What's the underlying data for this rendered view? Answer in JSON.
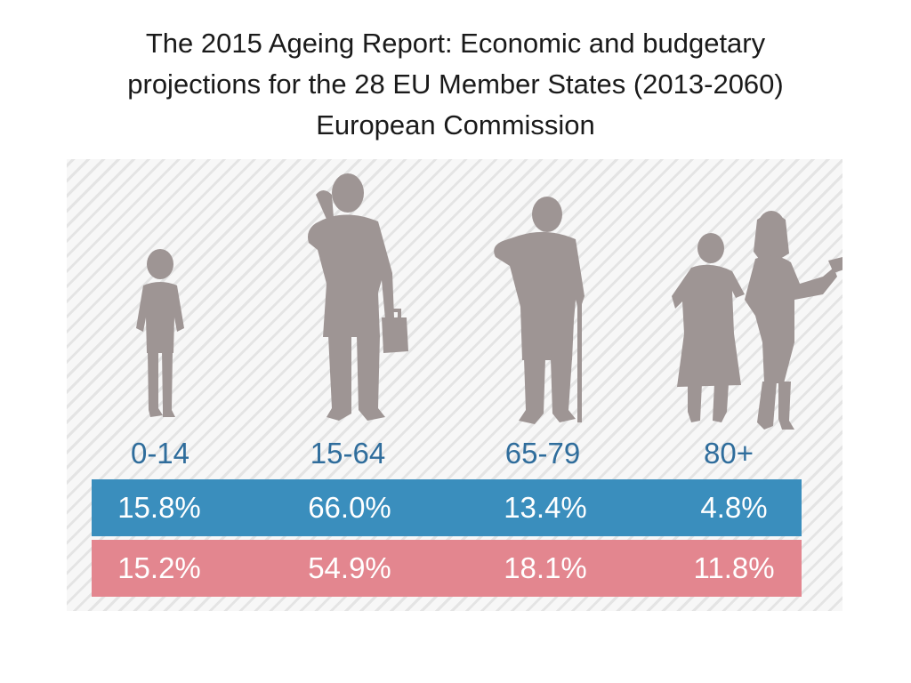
{
  "title": {
    "line1": "The 2015 Ageing Report: Economic and budgetary",
    "line2": "projections for the 28 EU Member States (2013-2060)",
    "line3": "European Commission"
  },
  "colors": {
    "age_label": "#2f6d9c",
    "band_blue": "#3a8ebd",
    "band_red": "#e3868f",
    "silhouette": "#9e9594"
  },
  "chart_data": {
    "type": "table",
    "title": "The 2015 Ageing Report: Economic and budgetary projections for the 28 EU Member States (2013-2060)",
    "categories": [
      "0-14",
      "15-64",
      "65-79",
      "80+"
    ],
    "series": [
      {
        "values": [
          15.8,
          66.0,
          13.4,
          4.8
        ],
        "labels": [
          "15.8%",
          "66.0%",
          "13.4%",
          "4.8%"
        ],
        "color": "#3a8ebd"
      },
      {
        "values": [
          15.2,
          54.9,
          18.1,
          11.8
        ],
        "labels": [
          "15.2%",
          "54.9%",
          "18.1%",
          "11.8%"
        ],
        "color": "#e3868f"
      }
    ],
    "icons": [
      "child-silhouette-icon",
      "adult-silhouette-icon",
      "elderly-man-silhouette-icon",
      "elderly-women-silhouette-icon"
    ]
  }
}
